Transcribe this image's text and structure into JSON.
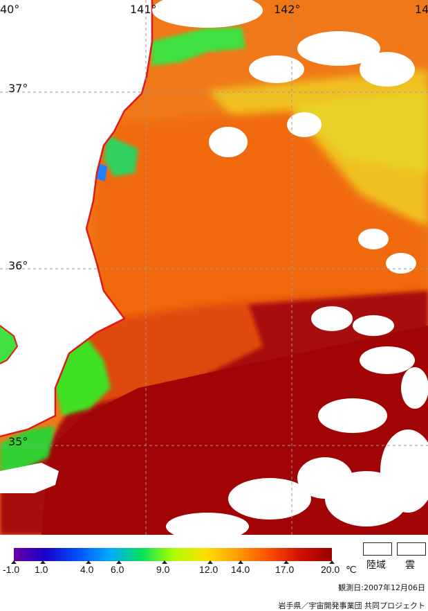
{
  "map": {
    "lon_labels": [
      {
        "text": "40°",
        "lon": 140
      },
      {
        "text": "141°",
        "lon": 141
      },
      {
        "text": "142°",
        "lon": 142
      },
      {
        "text": "14",
        "lon": 143
      }
    ],
    "lat_labels": [
      {
        "text": "37°",
        "lat": 37
      },
      {
        "text": "36°",
        "lat": 36
      },
      {
        "text": "35°",
        "lat": 35
      }
    ]
  },
  "colorbar": {
    "unit": "℃",
    "ticks": [
      "-1.0",
      "1.0",
      "4.0",
      "6.0",
      "9.0",
      "12.0",
      "14.0",
      "17.0",
      "20.0"
    ],
    "colors": [
      "#6a00a8",
      "#1a00c8",
      "#0050ff",
      "#00a8ff",
      "#00e060",
      "#a8ff00",
      "#ffe000",
      "#ffa000",
      "#ff5000",
      "#d01000",
      "#9a0000"
    ]
  },
  "legend": {
    "land_label": "陸域",
    "cloud_label": "雲"
  },
  "footer": {
    "observed": "観測日:2007年12月06日",
    "credit": "岩手県／宇宙開発事業団 共同プロジェクト"
  }
}
